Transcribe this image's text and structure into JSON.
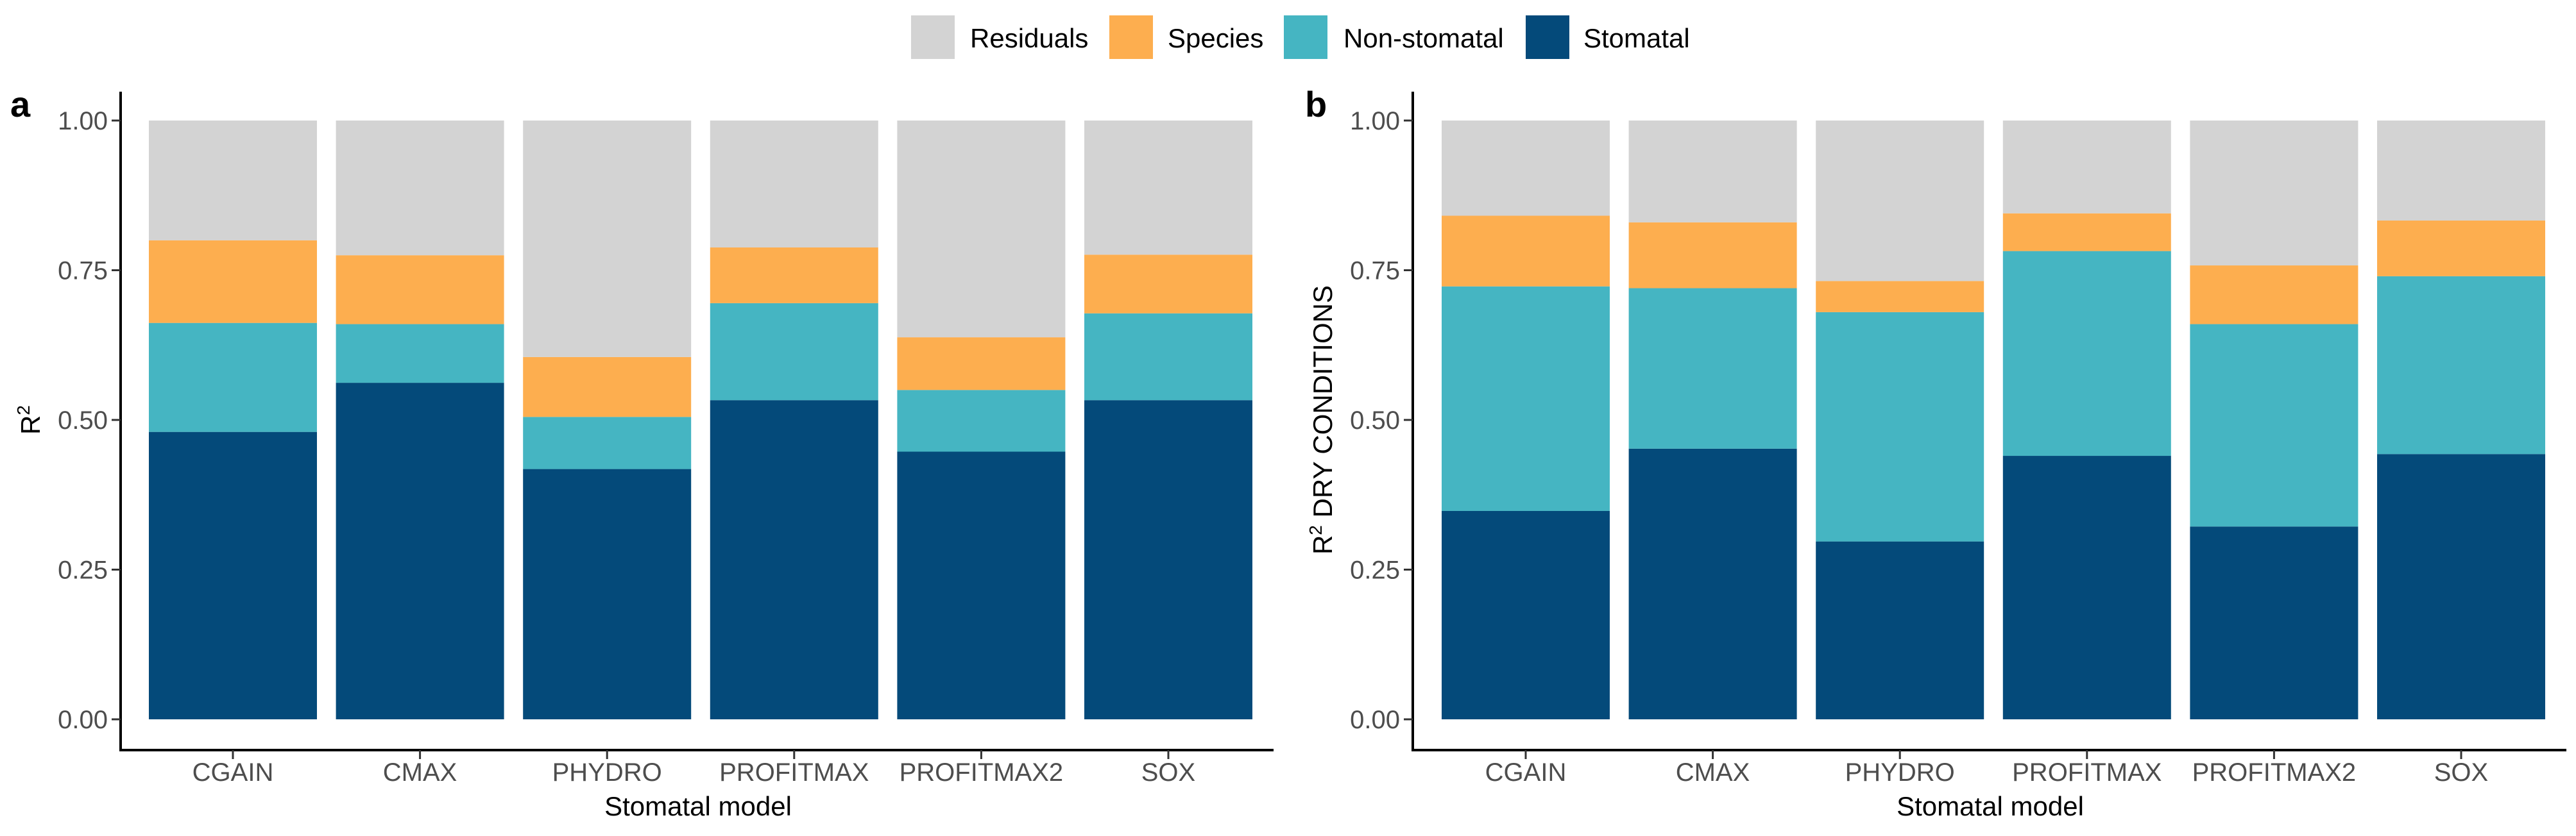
{
  "legend": [
    {
      "key": "residuals",
      "label": "Residuals",
      "color": "#d3d3d3"
    },
    {
      "key": "species",
      "label": "Species",
      "color": "#fdae4f"
    },
    {
      "key": "nonstomatal",
      "label": "Non-stomatal",
      "color": "#45b5c2"
    },
    {
      "key": "stomatal",
      "label": "Stomatal",
      "color": "#044a7a"
    }
  ],
  "chart_data": [
    {
      "panel": "a",
      "type": "bar",
      "stacked": true,
      "xlabel": "Stomatal model",
      "ylabel_main": "R",
      "ylabel_sup": "2",
      "ylabel_rest": "",
      "ylim": [
        0,
        1
      ],
      "yticks": [
        "0.00",
        "0.25",
        "0.50",
        "0.75",
        "1.00"
      ],
      "categories": [
        "CGAIN",
        "CMAX",
        "PHYDRO",
        "PROFITMAX",
        "PROFITMAX2",
        "SOX"
      ],
      "series": [
        {
          "key": "stomatal",
          "values": [
            0.48,
            0.562,
            0.418,
            0.533,
            0.447,
            0.533
          ]
        },
        {
          "key": "nonstomatal",
          "values": [
            0.182,
            0.098,
            0.087,
            0.162,
            0.103,
            0.145
          ]
        },
        {
          "key": "species",
          "values": [
            0.138,
            0.115,
            0.1,
            0.093,
            0.088,
            0.098
          ]
        },
        {
          "key": "residuals",
          "values": [
            0.2,
            0.225,
            0.395,
            0.212,
            0.362,
            0.224
          ]
        }
      ]
    },
    {
      "panel": "b",
      "type": "bar",
      "stacked": true,
      "xlabel": "Stomatal model",
      "ylabel_main": "R",
      "ylabel_sup": "2",
      "ylabel_rest": " DRY CONDITIONS",
      "ylim": [
        0,
        1
      ],
      "yticks": [
        "0.00",
        "0.25",
        "0.50",
        "0.75",
        "1.00"
      ],
      "categories": [
        "CGAIN",
        "CMAX",
        "PHYDRO",
        "PROFITMAX",
        "PROFITMAX2",
        "SOX"
      ],
      "series": [
        {
          "key": "stomatal",
          "values": [
            0.348,
            0.452,
            0.297,
            0.44,
            0.322,
            0.443
          ]
        },
        {
          "key": "nonstomatal",
          "values": [
            0.375,
            0.268,
            0.383,
            0.342,
            0.338,
            0.297
          ]
        },
        {
          "key": "species",
          "values": [
            0.118,
            0.11,
            0.052,
            0.063,
            0.098,
            0.093
          ]
        },
        {
          "key": "residuals",
          "values": [
            0.159,
            0.17,
            0.268,
            0.155,
            0.242,
            0.167
          ]
        }
      ]
    }
  ]
}
